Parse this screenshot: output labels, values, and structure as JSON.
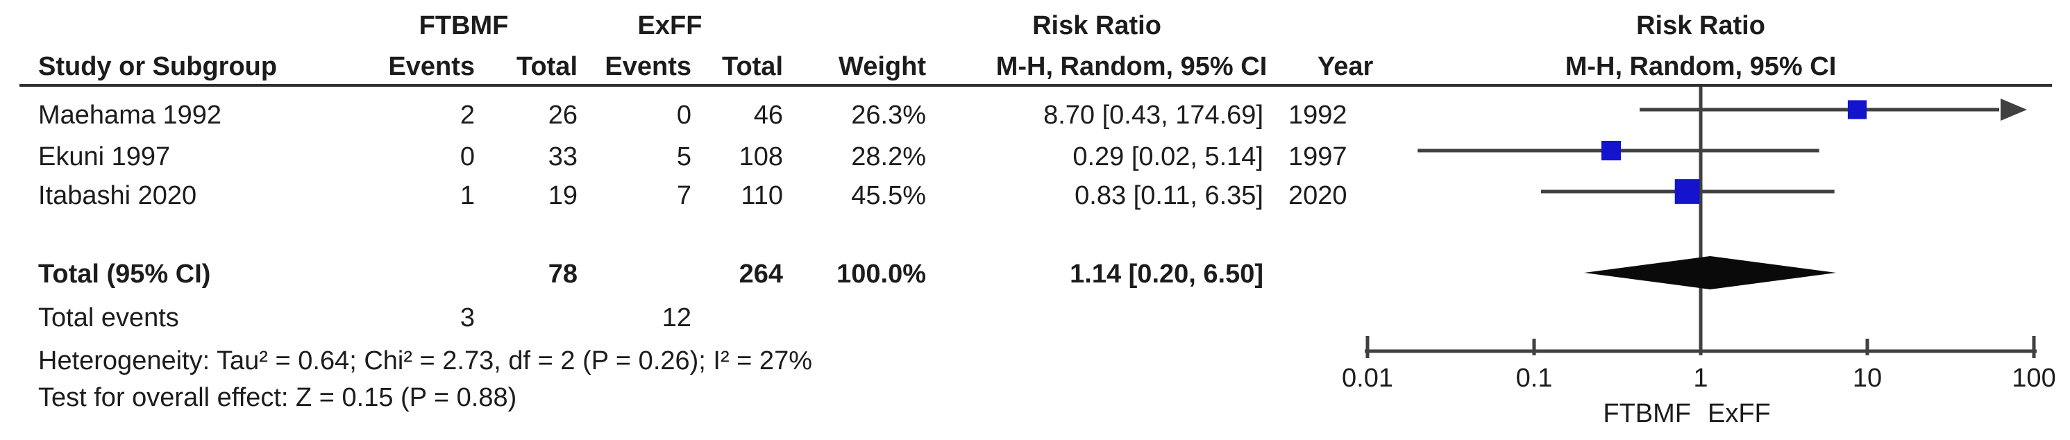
{
  "header": {
    "group1": "FTBMF",
    "group2": "ExFF",
    "study_col": "Study or Subgroup",
    "events_col": "Events",
    "total_col": "Total",
    "weight_col": "Weight",
    "rr_title": "Risk Ratio",
    "rr_subtitle": "M-H, Random, 95% CI",
    "year_col": "Year"
  },
  "rows": [
    {
      "study": "Maehama 1992",
      "events1": "2",
      "total1": "26",
      "events2": "0",
      "total2": "46",
      "weight": "26.3%",
      "ci": "8.70 [0.43, 174.69]",
      "year": "1992"
    },
    {
      "study": "Ekuni 1997",
      "events1": "0",
      "total1": "33",
      "events2": "5",
      "total2": "108",
      "weight": "28.2%",
      "ci": "0.29 [0.02, 5.14]",
      "year": "1997"
    },
    {
      "study": "Itabashi 2020",
      "events1": "1",
      "total1": "19",
      "events2": "7",
      "total2": "110",
      "weight": "45.5%",
      "ci": "0.83 [0.11, 6.35]",
      "year": "2020"
    }
  ],
  "total": {
    "label": "Total (95% CI)",
    "total1": "78",
    "total2": "264",
    "weight": "100.0%",
    "ci": "1.14 [0.20, 6.50]"
  },
  "total_events": {
    "label": "Total events",
    "events1": "3",
    "events2": "12"
  },
  "footnotes": {
    "heterogeneity": "Heterogeneity: Tau² = 0.64; Chi² = 2.73, df = 2 (P = 0.26); I² = 27%",
    "overall_effect": "Test for overall effect: Z = 0.15 (P = 0.88)"
  },
  "axis": {
    "tick_labels": [
      "0.01",
      "0.1",
      "1",
      "10",
      "100"
    ],
    "favours_left": "FTBMF",
    "favours_right": "ExFF"
  },
  "colors": {
    "square": "#1413cd",
    "line": "#404040",
    "diamond": "#0a0a0a",
    "text": "#1c1c1c"
  },
  "chart_data": {
    "type": "scatter",
    "subtype": "forest-plot",
    "title": "Risk Ratio",
    "model": "M-H, Random, 95% CI",
    "x_scale": "log",
    "x_ticks": [
      0.01,
      0.1,
      1,
      10,
      100
    ],
    "xlim": [
      0.01,
      100
    ],
    "studies": [
      {
        "name": "Maehama 1992",
        "rr": 8.7,
        "ci_low": 0.43,
        "ci_high": 174.69,
        "weight_pct": 26.3,
        "year": 1992
      },
      {
        "name": "Ekuni 1997",
        "rr": 0.29,
        "ci_low": 0.02,
        "ci_high": 5.14,
        "weight_pct": 28.2,
        "year": 1997
      },
      {
        "name": "Itabashi 2020",
        "rr": 0.83,
        "ci_low": 0.11,
        "ci_high": 6.35,
        "weight_pct": 45.5,
        "year": 2020
      }
    ],
    "overall": {
      "rr": 1.14,
      "ci_low": 0.2,
      "ci_high": 6.5,
      "weight_pct": 100.0
    },
    "heterogeneity": {
      "tau2": 0.64,
      "chi2": 2.73,
      "df": 2,
      "p": 0.26,
      "i2_pct": 27
    },
    "overall_effect": {
      "z": 0.15,
      "p": 0.88
    },
    "favours_left": "FTBMF",
    "favours_right": "ExFF",
    "legend_position": "none",
    "grid": false
  }
}
